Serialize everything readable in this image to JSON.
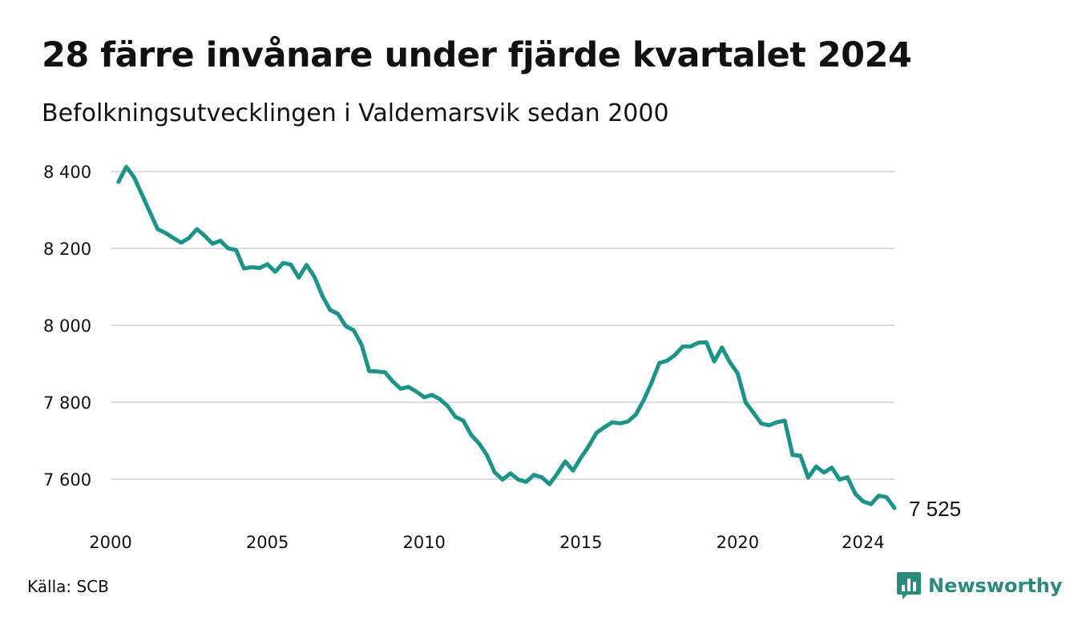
{
  "colors": {
    "line": "#1a9488",
    "grid": "#dcdcdc",
    "brand": "#2a8a7c"
  },
  "chart_data": {
    "type": "line",
    "title": "28 färre invånare under fjärde kvartalet 2024",
    "subtitle": "Befolkningsutvecklingen i Valdemarsvik sedan 2000",
    "xlabel": "",
    "ylabel": "",
    "xlim": [
      2000.0,
      2025.0
    ],
    "ylim": [
      7500,
      8420
    ],
    "grid": true,
    "x_ticks": [
      2000,
      2005,
      2010,
      2015,
      2020,
      2024
    ],
    "x_tick_labels": [
      "2000",
      "2005",
      "2010",
      "2015",
      "2020",
      "2024"
    ],
    "y_ticks": [
      7600,
      7800,
      8000,
      8200,
      8400
    ],
    "y_tick_labels": [
      "7 600",
      "7 800",
      "8 000",
      "8 200",
      "8 400"
    ],
    "end_label": "7 525",
    "series": [
      {
        "x": [
          2000.25,
          2000.5,
          2000.75,
          2001.0,
          2001.25,
          2001.5,
          2001.75,
          2002.0,
          2002.25,
          2002.5,
          2002.75,
          2003.0,
          2003.25,
          2003.5,
          2003.75,
          2004.0,
          2004.25,
          2004.5,
          2004.75,
          2005.0,
          2005.25,
          2005.5,
          2005.75,
          2006.0,
          2006.25,
          2006.5,
          2006.75,
          2007.0,
          2007.25,
          2007.5,
          2007.75,
          2008.0,
          2008.25,
          2008.5,
          2008.75,
          2009.0,
          2009.25,
          2009.5,
          2009.75,
          2010.0,
          2010.25,
          2010.5,
          2010.75,
          2011.0,
          2011.25,
          2011.5,
          2011.75,
          2012.0,
          2012.25,
          2012.5,
          2012.75,
          2013.0,
          2013.25,
          2013.5,
          2013.75,
          2014.0,
          2014.25,
          2014.5,
          2014.75,
          2015.0,
          2015.25,
          2015.5,
          2015.75,
          2016.0,
          2016.25,
          2016.5,
          2016.75,
          2017.0,
          2017.25,
          2017.5,
          2017.75,
          2018.0,
          2018.25,
          2018.5,
          2018.75,
          2019.0,
          2019.25,
          2019.5,
          2019.75,
          2020.0,
          2020.25,
          2020.5,
          2020.75,
          2021.0,
          2021.25,
          2021.5,
          2021.75,
          2022.0,
          2022.25,
          2022.5,
          2022.75,
          2023.0,
          2023.25,
          2023.5,
          2023.75,
          2024.0,
          2024.25,
          2024.5,
          2024.75,
          2025.0
        ],
        "y": [
          8373,
          8412,
          8385,
          8340,
          8295,
          8250,
          8240,
          8227,
          8215,
          8227,
          8250,
          8233,
          8212,
          8220,
          8200,
          8196,
          8148,
          8151,
          8149,
          8159,
          8139,
          8162,
          8158,
          8124,
          8157,
          8126,
          8077,
          8040,
          8030,
          7998,
          7987,
          7950,
          7881,
          7880,
          7878,
          7854,
          7835,
          7840,
          7828,
          7813,
          7819,
          7808,
          7790,
          7762,
          7752,
          7715,
          7693,
          7663,
          7618,
          7599,
          7615,
          7599,
          7593,
          7611,
          7605,
          7587,
          7615,
          7646,
          7622,
          7656,
          7686,
          7721,
          7735,
          7748,
          7745,
          7750,
          7768,
          7805,
          7850,
          7902,
          7908,
          7923,
          7945,
          7945,
          7955,
          7956,
          7906,
          7942,
          7904,
          7875,
          7800,
          7773,
          7745,
          7740,
          7748,
          7752,
          7663,
          7661,
          7604,
          7633,
          7617,
          7630,
          7599,
          7605,
          7562,
          7542,
          7535,
          7557,
          7553,
          7525
        ]
      }
    ],
    "source": "Källa: SCB"
  },
  "brand": {
    "name": "Newsworthy",
    "icon": "bar-chart-speech-bubble-icon"
  }
}
